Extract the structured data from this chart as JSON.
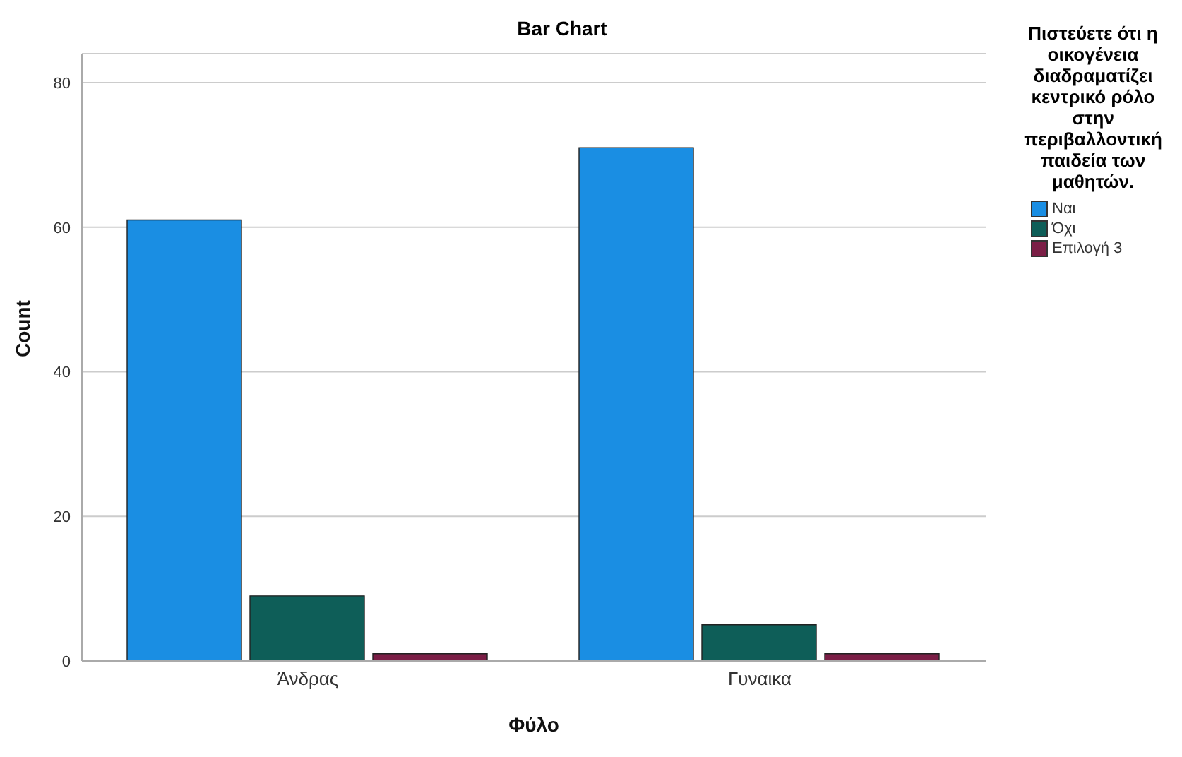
{
  "chart_data": {
    "type": "bar",
    "title": "Bar Chart",
    "xlabel": "Φύλο",
    "ylabel": "Count",
    "legend_title": "Πιστεύετε ότι η οικογένεια διαδραματίζει κεντρικό ρόλο στην περιβαλλοντική παιδεία των μαθητών.",
    "categories": [
      "Άνδρας",
      "Γυναικα"
    ],
    "series": [
      {
        "name": "Ναι",
        "color": "#1a8ee3",
        "values": [
          61,
          71
        ]
      },
      {
        "name": "Όχι",
        "color": "#0e5e58",
        "values": [
          9,
          5
        ]
      },
      {
        "name": "Επιλογή 3",
        "color": "#7b1e46",
        "values": [
          1,
          1
        ]
      }
    ],
    "ylim": [
      0,
      84
    ],
    "yticks": [
      0,
      20,
      40,
      60,
      80
    ],
    "grid": "y",
    "legend": "top right"
  }
}
